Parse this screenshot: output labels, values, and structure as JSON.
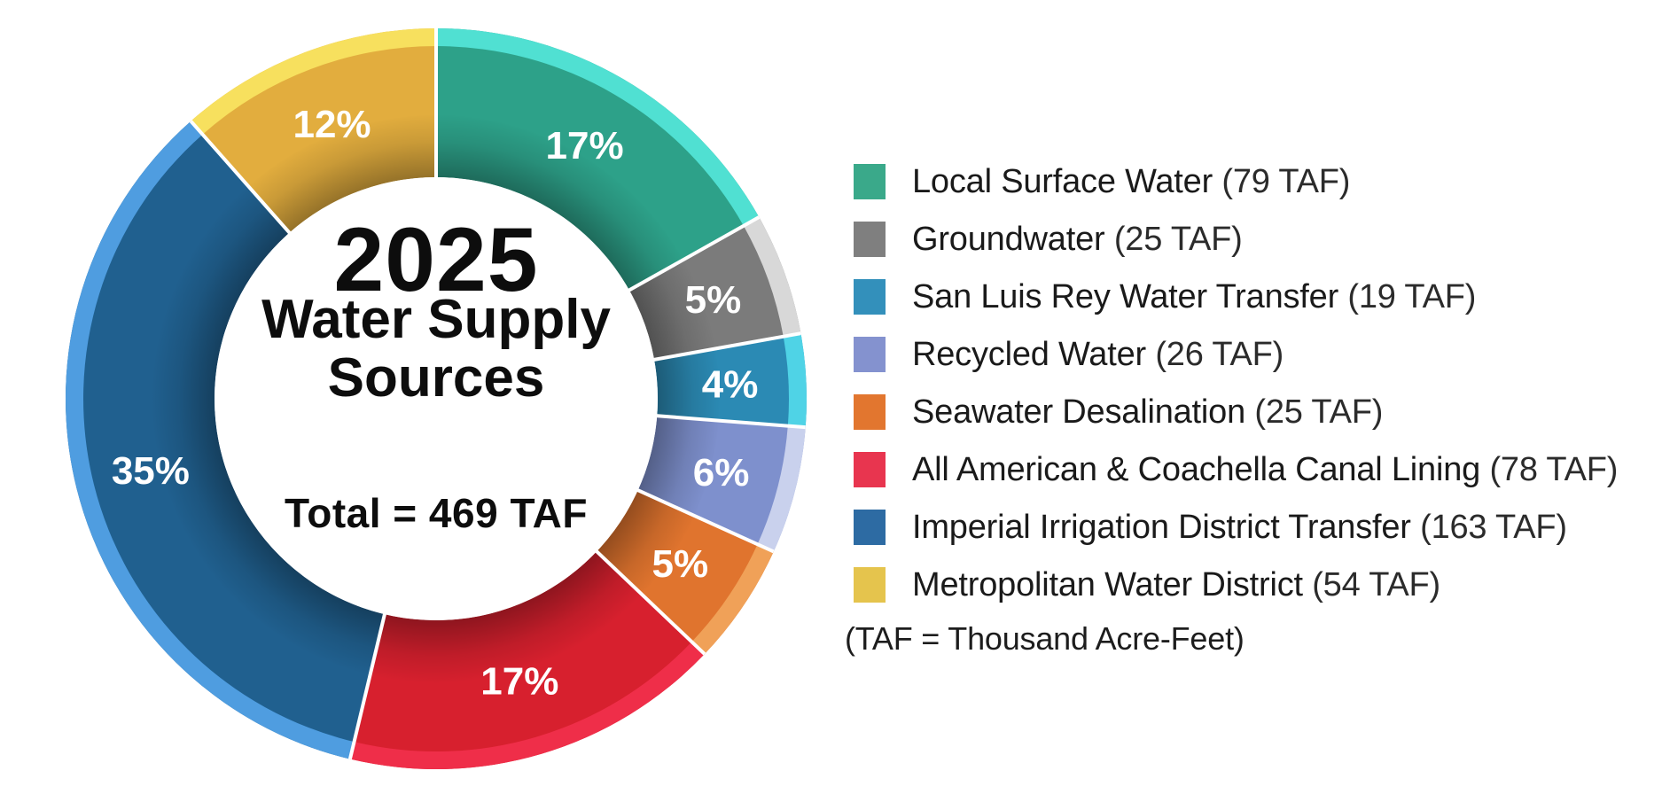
{
  "chart_data": {
    "type": "pie",
    "subtype": "donut",
    "title_lines": [
      "2025",
      "Water Supply",
      "Sources"
    ],
    "total_label": "Total = 469 TAF",
    "total_value": 469,
    "unit": "TAF",
    "note": "(TAF = Thousand Acre-Feet)",
    "start_angle_deg": 0,
    "direction": "clockwise",
    "legend_position": "right",
    "label_text_color": "#ffffff",
    "separator_color": "#ffffff",
    "slices": [
      {
        "label": "Local Surface Water",
        "taf": 79,
        "pct_label": "17%",
        "color": "#2da189",
        "highlight": "#50e0d2",
        "legend_color": "#3aa98a"
      },
      {
        "label": "Groundwater",
        "taf": 25,
        "pct_label": "5%",
        "color": "#7b7b7b",
        "highlight": "#d8d8d8",
        "legend_color": "#7f7f7f"
      },
      {
        "label": "San Luis Rey Water Transfer",
        "taf": 19,
        "pct_label": "4%",
        "color": "#2b8ab4",
        "highlight": "#4fd3e6",
        "legend_color": "#3390bb"
      },
      {
        "label": "Recycled Water",
        "taf": 26,
        "pct_label": "6%",
        "color": "#7e90cd",
        "highlight": "#c9d1ed",
        "legend_color": "#8492cf"
      },
      {
        "label": "Seawater Desalination",
        "taf": 25,
        "pct_label": "5%",
        "color": "#e0742e",
        "highlight": "#f0a158",
        "legend_color": "#e2762f"
      },
      {
        "label": "All American & Coachella Canal Lining",
        "taf": 78,
        "pct_label": "17%",
        "color": "#d7202e",
        "highlight": "#ef2e49",
        "legend_color": "#e8354f"
      },
      {
        "label": "Imperial Irrigation District Transfer",
        "taf": 163,
        "pct_label": "35%",
        "color": "#20608f",
        "highlight": "#4f9de0",
        "legend_color": "#2d6ba3"
      },
      {
        "label": "Metropolitan Water District",
        "taf": 54,
        "pct_label": "12%",
        "color": "#e2ad3e",
        "highlight": "#f7e05e",
        "legend_color": "#e5c44d"
      }
    ]
  }
}
